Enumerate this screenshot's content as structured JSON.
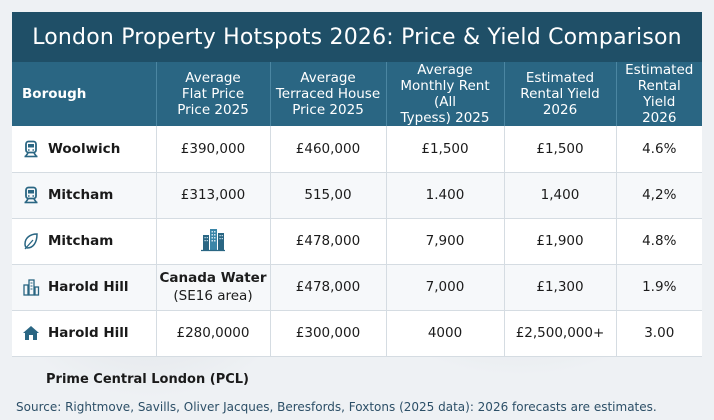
{
  "title": "London Property Hotspots 2026: Price & Yield Comparison",
  "headers": {
    "borough": "Borough",
    "flat_l1": "Average",
    "flat_l2": "Flat Price",
    "flat_l3": "Price 2025",
    "terr_l1": "Average",
    "terr_l2": "Terraced House",
    "terr_l3": "Price 2025",
    "rent_l1": "Average",
    "rent_l2": "Monthly Rent (All",
    "rent_l3": "Typess) 2025",
    "yield1_l1": "Estimated",
    "yield1_l2": "Rental Yield",
    "yield1_l3": "2026",
    "yield2_l1": "Estimated",
    "yield2_l2": "Rental Yield",
    "yield2_l3": "2026"
  },
  "rows": [
    {
      "icon": "train-icon",
      "borough": "Woolwich",
      "flat": "£390,000",
      "terraced": "£460,000",
      "rent": "£1,500",
      "yield1": "£1,500",
      "yield2": "4.6%"
    },
    {
      "icon": "train-icon",
      "borough": "Mitcham",
      "flat": "£313,000",
      "terraced": "515,00",
      "rent": "1.400",
      "yield1": "1,400",
      "yield2": "4,2%"
    },
    {
      "icon": "leaf-icon",
      "borough": "Mitcham",
      "flat": "",
      "terraced": "£478,000",
      "rent": "7,900",
      "yield1": "£1,900",
      "yield2": "4.8%"
    },
    {
      "icon": "buildings-icon",
      "borough": "Harold Hill",
      "flat_l1": "Canada Water",
      "flat_l2": "(SE16 area)",
      "terraced": "£478,000",
      "rent": "7,000",
      "yield1": "£1,300",
      "yield2": "1.9%"
    },
    {
      "icon": "house-icon",
      "borough": "Harold Hill",
      "flat": "£280,0000",
      "terraced": "£300,000",
      "rent": "4000",
      "yield1": "£2,500,000+",
      "yield2": "3.00"
    }
  ],
  "footer_label": "Prime Central London (PCL)",
  "source": "Source: Rightmove, Savills, Oliver Jacques, Beresfords, Foxtons (2025 data): 2026 forecasts are estimates.",
  "colors": {
    "title_bg": "#1f4f67",
    "header_bg": "#2a6683",
    "icon": "#2a6683"
  }
}
